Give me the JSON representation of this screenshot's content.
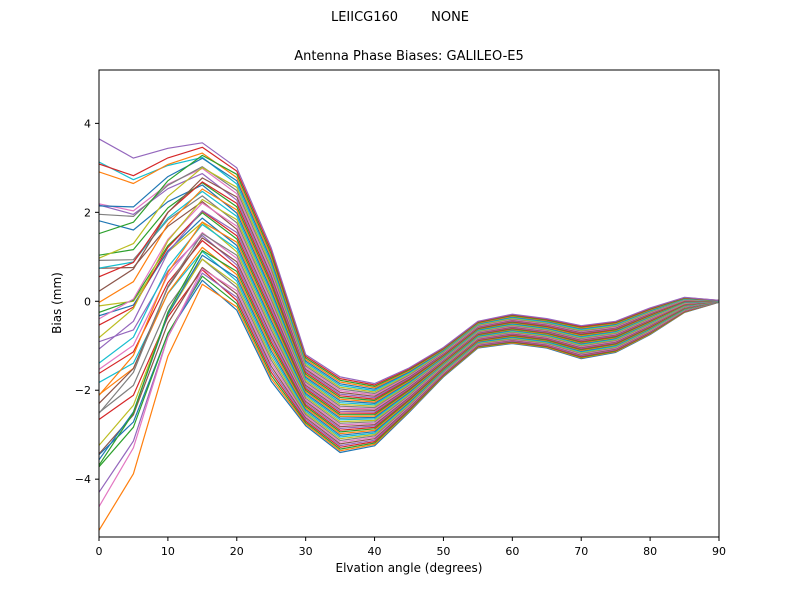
{
  "header": {
    "suptitle": "LEIICG160        NONE",
    "title": "Antenna Phase Biases: GALILEO-E5"
  },
  "chart_data": {
    "type": "line",
    "suptitle": "LEIICG160        NONE",
    "title": "Antenna Phase Biases: GALILEO-E5",
    "xlabel": "Elvation angle (degrees)",
    "ylabel": "Bias (mm)",
    "xlim": [
      0,
      90
    ],
    "ylim": [
      -5.3,
      5.2
    ],
    "xticks": [
      0,
      10,
      20,
      30,
      40,
      50,
      60,
      70,
      80,
      90
    ],
    "yticks": [
      -4,
      -2,
      0,
      2,
      4
    ],
    "grid": false,
    "legend": "none",
    "n_series": 45,
    "line_width": 1.2,
    "x": [
      0,
      5,
      10,
      15,
      20,
      25,
      30,
      35,
      40,
      45,
      50,
      55,
      60,
      65,
      70,
      75,
      80,
      85,
      90
    ],
    "band_center": [
      -0.75,
      -0.3,
      1.1,
      1.95,
      1.4,
      -0.3,
      -2.0,
      -2.55,
      -2.55,
      -2.0,
      -1.37,
      -0.75,
      -0.62,
      -0.72,
      -0.92,
      -0.8,
      -0.45,
      -0.08,
      0.0
    ],
    "band_halfwidth": [
      3.6,
      3.0,
      2.1,
      1.55,
      1.6,
      1.5,
      0.8,
      0.85,
      0.7,
      0.5,
      0.33,
      0.3,
      0.33,
      0.33,
      0.37,
      0.35,
      0.3,
      0.17,
      0.02
    ],
    "scramble_weight": [
      1,
      0.65,
      0.3,
      0.08,
      0,
      0,
      0,
      0,
      0,
      0,
      0,
      0,
      0,
      0,
      0,
      0,
      0,
      0,
      0
    ],
    "series_scramble": [
      0.9,
      -1.1,
      0.3,
      1.2,
      -0.6,
      0.1,
      -1.25,
      0.7,
      -0.2,
      1.05,
      -0.85,
      0.45,
      -1.3,
      0.6,
      1.15,
      -0.4,
      0.2,
      -0.95,
      1.3,
      -0.15,
      0.75,
      -1.2,
      0.5,
      0.05,
      -0.65,
      1.0,
      -0.3,
      0.85,
      -1.05,
      0.35,
      1.25,
      -0.75,
      0.15,
      -0.5,
      0.95,
      -1.15,
      0.65,
      0.25,
      -0.9,
      1.1,
      -0.05,
      0.55,
      -1.0,
      0.4,
      0.8
    ],
    "palette": [
      "#1f77b4",
      "#ff7f0e",
      "#2ca02c",
      "#d62728",
      "#9467bd",
      "#8c564b",
      "#e377c2",
      "#7f7f7f",
      "#bcbd22",
      "#17becf"
    ],
    "axis_color": "#000000",
    "background_color": "#ffffff"
  }
}
